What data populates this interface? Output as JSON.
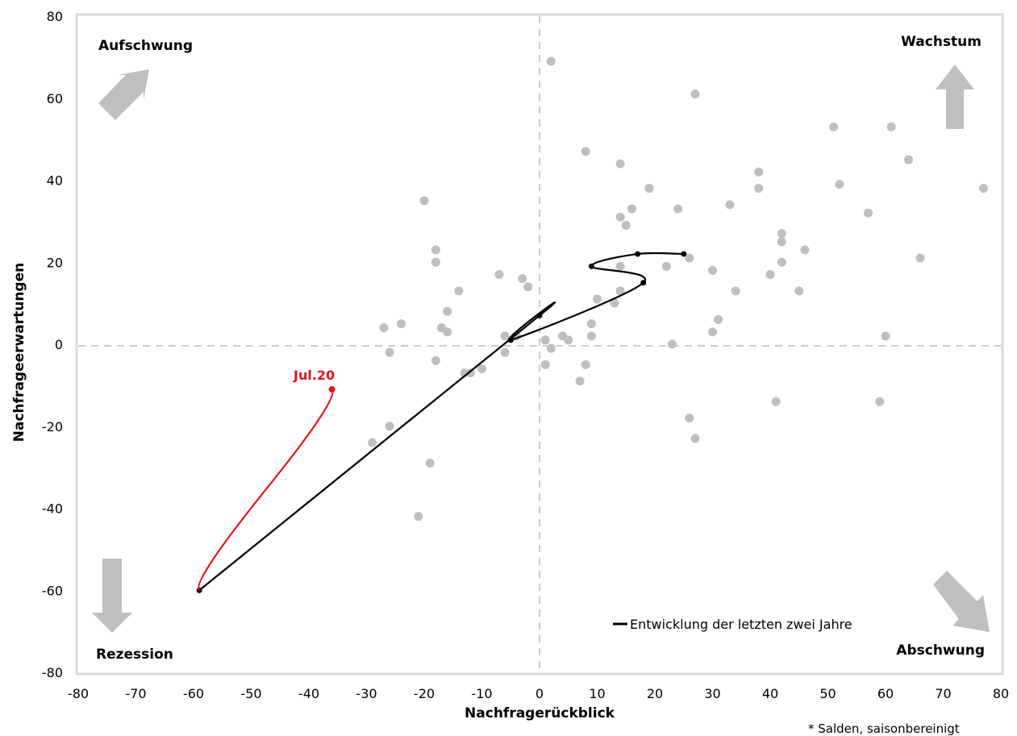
{
  "chart_data": {
    "type": "scatter",
    "title": "",
    "xlabel": "Nachfragerückblick",
    "ylabel": "Nachfrageerwartungen",
    "xlim": [
      -80,
      80
    ],
    "ylim": [
      -80,
      80
    ],
    "xticks": [
      -80,
      -70,
      -60,
      -50,
      -40,
      -30,
      -20,
      -10,
      0,
      10,
      20,
      30,
      40,
      50,
      60,
      70,
      80
    ],
    "yticks": [
      -80,
      -60,
      -40,
      -20,
      0,
      20,
      40,
      60,
      80
    ],
    "grid": false,
    "zero_lines": "dashed",
    "quadrants": {
      "top_left": "Aufschwung",
      "top_right": "Wachstum",
      "bottom_left": "Rezession",
      "bottom_right": "Abschwung"
    },
    "footnote": "* Salden, saisonbereinigt",
    "legend": {
      "position": "bottom-right",
      "label": "Entwicklung der letzten zwei Jahre"
    },
    "annotation": {
      "text": "Jul.20",
      "x": -36,
      "y": -11,
      "color": "#e8131b"
    },
    "colors": {
      "scatter": "#bfbfbf",
      "path": "#000000",
      "latest": "#e8131b",
      "arrows": "#bfbfbf",
      "frame": "#d9d9d9"
    },
    "series": [
      {
        "kind": "scatter",
        "points": [
          [
            2,
            69
          ],
          [
            27,
            61
          ],
          [
            61,
            53
          ],
          [
            51,
            53
          ],
          [
            64,
            45
          ],
          [
            8,
            47
          ],
          [
            14,
            44
          ],
          [
            38,
            42
          ],
          [
            38,
            38
          ],
          [
            52,
            39
          ],
          [
            77,
            38
          ],
          [
            19,
            38
          ],
          [
            -20,
            35
          ],
          [
            33,
            34
          ],
          [
            24,
            33
          ],
          [
            16,
            33
          ],
          [
            57,
            32
          ],
          [
            14,
            31
          ],
          [
            15,
            29
          ],
          [
            42,
            27
          ],
          [
            42,
            25
          ],
          [
            -18,
            23
          ],
          [
            -18,
            20
          ],
          [
            46,
            23
          ],
          [
            66,
            21
          ],
          [
            26,
            21
          ],
          [
            42,
            20
          ],
          [
            22,
            19
          ],
          [
            14,
            19
          ],
          [
            30,
            18
          ],
          [
            40,
            17
          ],
          [
            -7,
            17
          ],
          [
            -3,
            16
          ],
          [
            -2,
            14
          ],
          [
            -14,
            13
          ],
          [
            14,
            13
          ],
          [
            34,
            13
          ],
          [
            45,
            13
          ],
          [
            10,
            11
          ],
          [
            -16,
            8
          ],
          [
            13,
            10
          ],
          [
            9,
            5
          ],
          [
            31,
            6
          ],
          [
            -24,
            5
          ],
          [
            -27,
            4
          ],
          [
            -17,
            4
          ],
          [
            -16,
            3
          ],
          [
            30,
            3
          ],
          [
            60,
            2
          ],
          [
            -6,
            2
          ],
          [
            -4,
            2
          ],
          [
            4,
            2
          ],
          [
            9,
            2
          ],
          [
            1,
            1
          ],
          [
            5,
            1
          ],
          [
            2,
            -1
          ],
          [
            23,
            0
          ],
          [
            -26,
            -2
          ],
          [
            -6,
            -2
          ],
          [
            -18,
            -4
          ],
          [
            1,
            -5
          ],
          [
            8,
            -5
          ],
          [
            -10,
            -6
          ],
          [
            -13,
            -7
          ],
          [
            -12,
            -7
          ],
          [
            7,
            -9
          ],
          [
            41,
            -14
          ],
          [
            59,
            -14
          ],
          [
            26,
            -18
          ],
          [
            -26,
            -20
          ],
          [
            27,
            -23
          ],
          [
            -29,
            -24
          ],
          [
            -19,
            -29
          ],
          [
            -21,
            -42
          ]
        ]
      },
      {
        "kind": "path",
        "name": "Entwicklung der letzten zwei Jahre",
        "points": [
          [
            25,
            22
          ],
          [
            17,
            22
          ],
          [
            9,
            19
          ],
          [
            18,
            15
          ],
          [
            -5,
            1
          ],
          [
            0,
            7
          ],
          [
            -59,
            -60
          ]
        ]
      },
      {
        "kind": "path-latest",
        "points": [
          [
            -59,
            -60
          ],
          [
            -36,
            -11
          ]
        ]
      }
    ]
  }
}
